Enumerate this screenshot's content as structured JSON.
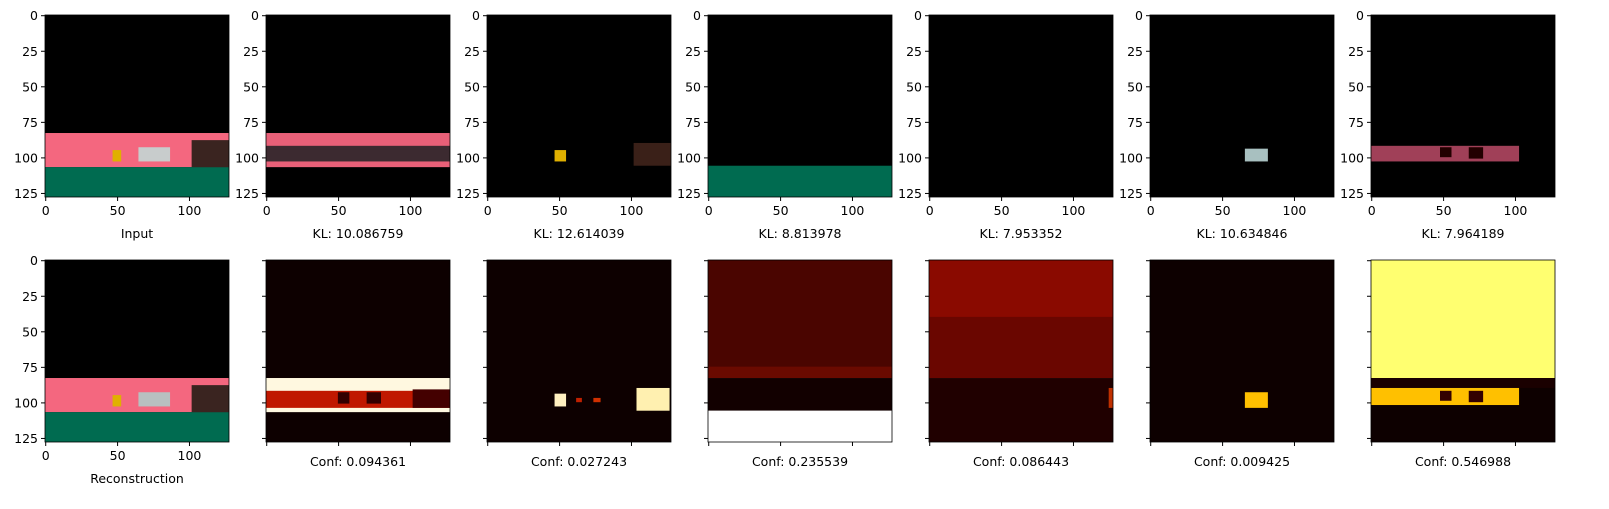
{
  "axes": {
    "xticks": [
      0,
      50,
      100
    ],
    "yticks": [
      0,
      25,
      50,
      75,
      100,
      125
    ],
    "xlim": [
      -0.5,
      127.5
    ],
    "ylim": [
      127.5,
      -0.5
    ]
  },
  "top_row": {
    "labels": [
      "Input",
      "KL: 10.086759",
      "KL: 12.614039",
      "KL: 8.813978",
      "KL: 7.953352",
      "KL: 10.634846",
      "KL: 7.964189"
    ]
  },
  "bottom_row": {
    "labels": [
      "Reconstruction",
      "Conf: 0.094361",
      "Conf: 0.027243",
      "Conf: 0.235539",
      "Conf: 0.086443",
      "Conf: 0.009425",
      "Conf: 0.546988"
    ]
  }
}
